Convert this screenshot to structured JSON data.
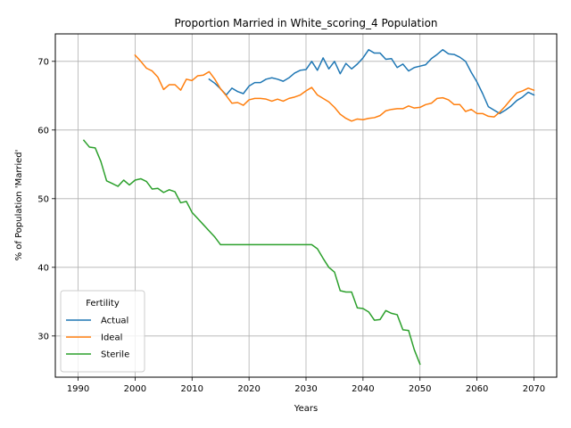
{
  "chart_data": {
    "type": "line",
    "title": "Proportion Married in White_scoring_4 Population",
    "xlabel": "Years",
    "ylabel": "% of Population 'Married'",
    "xlim": [
      1986,
      2074
    ],
    "ylim": [
      24,
      74
    ],
    "xticks": [
      1990,
      2000,
      2010,
      2020,
      2030,
      2040,
      2050,
      2060,
      2070
    ],
    "yticks": [
      30,
      40,
      50,
      60,
      70
    ],
    "grid": true,
    "legend": {
      "title": "Fertility",
      "position": "lower-left"
    },
    "series": [
      {
        "name": "Actual",
        "color": "#1f77b4",
        "x": [
          2013,
          2014,
          2015,
          2016,
          2017,
          2018,
          2019,
          2020,
          2021,
          2022,
          2023,
          2024,
          2025,
          2026,
          2027,
          2028,
          2029,
          2030,
          2031,
          2032,
          2033,
          2034,
          2035,
          2036,
          2037,
          2038,
          2039,
          2040,
          2041,
          2042,
          2043,
          2044,
          2045,
          2046,
          2047,
          2048,
          2049,
          2050,
          2051,
          2052,
          2053,
          2054,
          2055,
          2056,
          2057,
          2058,
          2059,
          2060,
          2061,
          2062,
          2063,
          2064,
          2065,
          2066,
          2067,
          2068,
          2069,
          2070
        ],
        "y": [
          67.4,
          66.8,
          66.0,
          65.1,
          66.1,
          65.6,
          65.3,
          66.4,
          66.9,
          66.9,
          67.4,
          67.6,
          67.4,
          67.1,
          67.6,
          68.3,
          68.7,
          68.8,
          70.0,
          68.7,
          70.5,
          68.9,
          70.0,
          68.2,
          69.7,
          68.9,
          69.6,
          70.5,
          71.7,
          71.2,
          71.2,
          70.3,
          70.4,
          69.1,
          69.6,
          68.6,
          69.1,
          69.3,
          69.5,
          70.4,
          71.0,
          71.7,
          71.1,
          71.0,
          70.6,
          70.0,
          68.4,
          67.0,
          65.3,
          63.4,
          62.9,
          62.4,
          62.9,
          63.5,
          64.3,
          64.8,
          65.5,
          65.1
        ]
      },
      {
        "name": "Ideal",
        "color": "#ff7f0e",
        "x": [
          2000,
          2001,
          2002,
          2003,
          2004,
          2005,
          2006,
          2007,
          2008,
          2009,
          2010,
          2011,
          2012,
          2013,
          2014,
          2015,
          2016,
          2017,
          2018,
          2019,
          2020,
          2021,
          2022,
          2023,
          2024,
          2025,
          2026,
          2027,
          2028,
          2029,
          2030,
          2031,
          2032,
          2033,
          2034,
          2035,
          2036,
          2037,
          2038,
          2039,
          2040,
          2041,
          2042,
          2043,
          2044,
          2045,
          2046,
          2047,
          2048,
          2049,
          2050,
          2051,
          2052,
          2053,
          2054,
          2055,
          2056,
          2057,
          2058,
          2059,
          2060,
          2061,
          2062,
          2063,
          2064,
          2065,
          2066,
          2067,
          2068,
          2069,
          2070
        ],
        "y": [
          70.9,
          70.0,
          69.0,
          68.6,
          67.7,
          65.9,
          66.6,
          66.6,
          65.8,
          67.4,
          67.2,
          67.9,
          68.0,
          68.5,
          67.4,
          66.0,
          65.0,
          63.9,
          64.0,
          63.6,
          64.4,
          64.6,
          64.6,
          64.5,
          64.2,
          64.5,
          64.2,
          64.6,
          64.8,
          65.1,
          65.7,
          66.2,
          65.1,
          64.6,
          64.1,
          63.3,
          62.3,
          61.7,
          61.3,
          61.6,
          61.5,
          61.7,
          61.8,
          62.1,
          62.8,
          63.0,
          63.1,
          63.1,
          63.5,
          63.2,
          63.3,
          63.7,
          63.9,
          64.6,
          64.7,
          64.4,
          63.7,
          63.7,
          62.7,
          63.0,
          62.4,
          62.4,
          62.0,
          61.9,
          62.6,
          63.5,
          64.5,
          65.4,
          65.7,
          66.1,
          65.8
        ]
      },
      {
        "name": "Sterile",
        "color": "#2ca02c",
        "x": [
          1991,
          1992,
          1993,
          1994,
          1995,
          1996,
          1997,
          1998,
          1999,
          2000,
          2001,
          2002,
          2003,
          2004,
          2005,
          2006,
          2007,
          2008,
          2009,
          2010,
          2011,
          2012,
          2013,
          2014,
          2015,
          2016,
          2017,
          2018,
          2019,
          2020,
          2021,
          2022,
          2023,
          2024,
          2025,
          2026,
          2027,
          2028,
          2029,
          2030,
          2031,
          2032,
          2033,
          2034,
          2035,
          2036,
          2037,
          2038,
          2039,
          2040,
          2041,
          2042,
          2043,
          2044,
          2045,
          2046,
          2047,
          2048,
          2049,
          2050
        ],
        "y": [
          58.5,
          57.5,
          57.4,
          55.4,
          52.6,
          52.2,
          51.8,
          52.7,
          52.0,
          52.7,
          52.9,
          52.5,
          51.4,
          51.5,
          50.9,
          51.3,
          51.0,
          49.4,
          49.6,
          48.0,
          47.1,
          46.2,
          45.3,
          44.4,
          43.3,
          43.3,
          43.3,
          43.3,
          43.3,
          43.3,
          43.3,
          43.3,
          43.3,
          43.3,
          43.3,
          43.3,
          43.3,
          43.3,
          43.3,
          43.3,
          43.3,
          42.7,
          41.3,
          40.0,
          39.3,
          36.6,
          36.4,
          36.4,
          34.1,
          34.0,
          33.5,
          32.3,
          32.4,
          33.7,
          33.3,
          33.1,
          30.9,
          30.8,
          28.0,
          25.9
        ]
      }
    ]
  }
}
